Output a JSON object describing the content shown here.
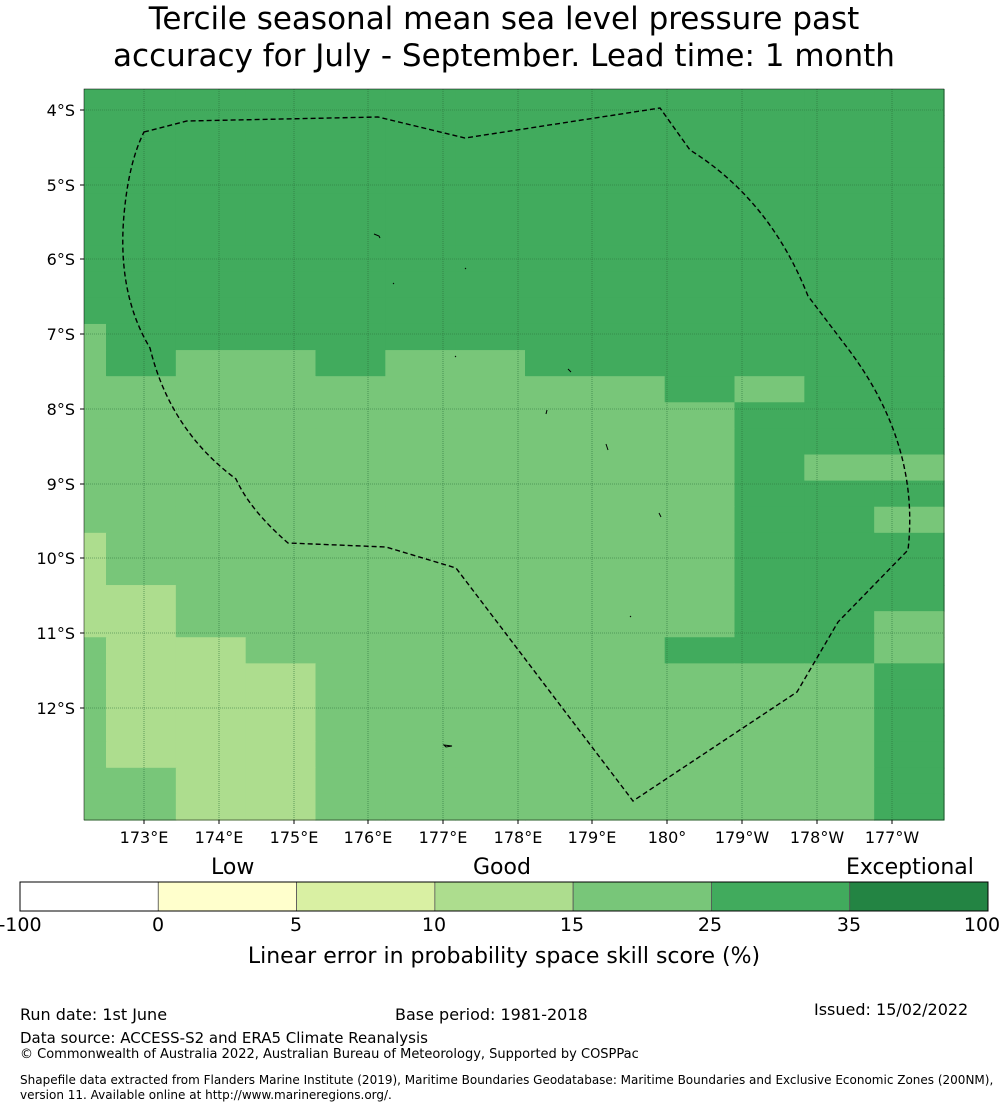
{
  "title_line1": "Tercile seasonal mean sea level pressure past",
  "title_line2": "accuracy for July - September. Lead time: 1 month",
  "map": {
    "lat_labels": [
      "4°S",
      "5°S",
      "6°S",
      "7°S",
      "8°S",
      "9°S",
      "10°S",
      "11°S",
      "12°S"
    ],
    "lon_labels": [
      "173°E",
      "174°E",
      "175°E",
      "176°E",
      "177°E",
      "178°E",
      "179°E",
      "180°",
      "179°W",
      "178°W",
      "177°W"
    ],
    "category_colors": [
      "#ffffff",
      "#ffffcc",
      "#d9f0a3",
      "#addd8e",
      "#78c679",
      "#41ab5d",
      "#238443"
    ],
    "grid_rows": [
      "5555555555555",
      "5555555555555",
      "5555555555555",
      "5555555555555",
      "5555555555555",
      "5555555555555",
      "5555555555555",
      "5555555555555",
      "5555555555555",
      "4555555555555",
      "4544544555555",
      "4444444445455",
      "4444444444555",
      "4444444444555",
      "4444444444544",
      "4444444444555",
      "4444444444554",
      "3444444444555",
      "3444444444555",
      "3344444444555",
      "3344444444554",
      "4334444445554",
      "4333444444445",
      "4333444444445",
      "4333444444445",
      "4333444444445",
      "4433444444445",
      "4433444444445"
    ]
  },
  "colorbar": {
    "categories": [
      "Low",
      "Good",
      "Exceptional"
    ],
    "ticks": [
      "-100",
      "0",
      "5",
      "10",
      "15",
      "25",
      "35",
      "100"
    ],
    "colors": [
      "#ffffff",
      "#ffffcc",
      "#d9f0a3",
      "#addd8e",
      "#78c679",
      "#41ab5d",
      "#238443"
    ],
    "label": "Linear error in probability space skill score (%)"
  },
  "footer": {
    "run_date": "Run date: 1st June",
    "base_period": "Base period: 1981-2018",
    "issued": "Issued: 15/02/2022",
    "data_source": "Data source: ACCESS-S2 and ERA5 Climate Reanalysis",
    "copyright": "© Commonwealth of Australia 2022, Australian Bureau of Meteorology, Supported by COSPPac",
    "shapefile_line1": "Shapefile data extracted from Flanders Marine Institute (2019), Maritime Boundaries Geodatabase: Maritime Boundaries and Exclusive Economic Zones (200NM),",
    "shapefile_line2": "version 11. Available online at http://www.marineregions.org/."
  }
}
